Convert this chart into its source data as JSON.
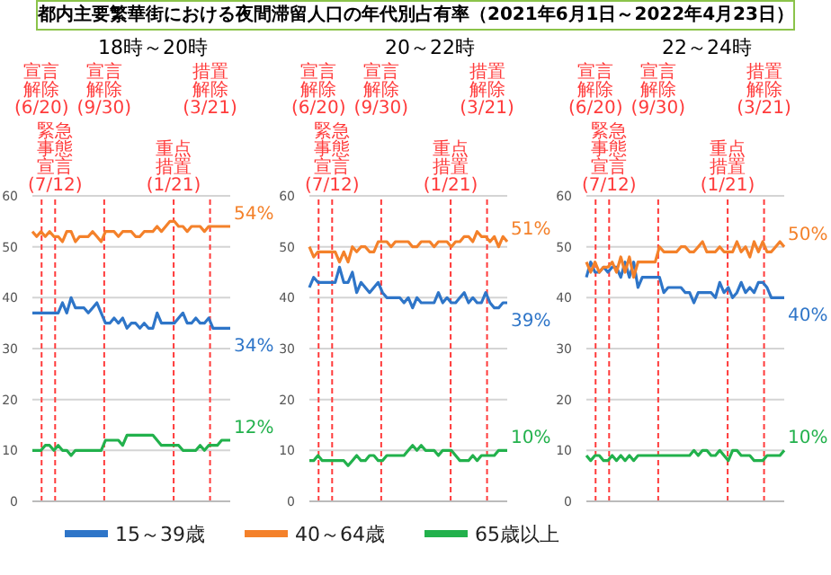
{
  "chart_data": [
    {
      "type": "line",
      "title": "都内主要繁華街における夜間滞留人口の年代別占有率（2021年6月1日～2022年4月23日）",
      "subtitle": "18時～20時",
      "categories": [
        null,
        null,
        null,
        null,
        null,
        null,
        null,
        null,
        null,
        null,
        null,
        null,
        null,
        null,
        null,
        null,
        null,
        null,
        null,
        null,
        null,
        null,
        null,
        null,
        null,
        null,
        null,
        null,
        null,
        null,
        null,
        null,
        null,
        null,
        null,
        null,
        null,
        null,
        null,
        null,
        null,
        null,
        null,
        null,
        null,
        null,
        null
      ],
      "series": [
        {
          "color": "#2e75c8",
          "values": [
            37,
            37,
            37,
            37,
            37,
            37,
            37,
            39,
            37,
            40,
            38,
            38,
            38,
            37,
            38,
            39,
            37,
            35,
            35,
            36,
            35,
            36,
            34,
            35,
            35,
            34,
            35,
            34,
            34,
            37,
            35,
            35,
            35,
            35,
            36,
            37,
            35,
            35,
            36,
            35,
            35,
            36,
            34,
            34,
            34,
            34,
            34
          ]
        },
        {
          "color": "#f4812a",
          "values": [
            53,
            52,
            53,
            52,
            53,
            52,
            52,
            51,
            53,
            53,
            51,
            52,
            52,
            52,
            53,
            52,
            51,
            53,
            53,
            53,
            52,
            53,
            53,
            53,
            52,
            52,
            53,
            53,
            53,
            54,
            53,
            54,
            55,
            55,
            54,
            54,
            53,
            54,
            54,
            54,
            53,
            54,
            54,
            54,
            54,
            54,
            54
          ]
        },
        {
          "color": "#22b14c",
          "values": [
            10,
            10,
            10,
            11,
            11,
            10,
            11,
            10,
            10,
            9,
            10,
            10,
            10,
            10,
            10,
            10,
            10,
            12,
            12,
            12,
            12,
            11,
            13,
            13,
            13,
            13,
            13,
            13,
            13,
            12,
            11,
            11,
            11,
            11,
            11,
            10,
            10,
            10,
            10,
            11,
            10,
            11,
            11,
            11,
            12,
            12,
            12
          ]
        }
      ],
      "ylim": [
        0,
        60
      ],
      "yticks": [
        0,
        10,
        20,
        30,
        40,
        50,
        60
      ],
      "grid": "y",
      "line_style": "solid",
      "ref_lines": [
        {
          "axis": "x",
          "label": "宣言解除(6/20)",
          "color": "#ff3b3b",
          "line_style": "dashed"
        },
        {
          "axis": "x",
          "label": "緊急事態宣言(7/12)",
          "color": "#ff3b3b",
          "line_style": "dashed"
        },
        {
          "axis": "x",
          "label": "宣言解除(9/30)",
          "color": "#ff3b3b",
          "line_style": "dashed"
        },
        {
          "axis": "x",
          "label": "重点措置(1/21)",
          "color": "#ff3b3b",
          "line_style": "dashed"
        },
        {
          "axis": "x",
          "label": "措置解除(3/21)",
          "color": "#ff3b3b",
          "line_style": "dashed"
        }
      ],
      "annotations": [
        "34%",
        "54%",
        "12%"
      ]
    },
    {
      "type": "line",
      "subtitle": "20～22時",
      "categories": [
        null,
        null,
        null,
        null,
        null,
        null,
        null,
        null,
        null,
        null,
        null,
        null,
        null,
        null,
        null,
        null,
        null,
        null,
        null,
        null,
        null,
        null,
        null,
        null,
        null,
        null,
        null,
        null,
        null,
        null,
        null,
        null,
        null,
        null,
        null,
        null,
        null,
        null,
        null,
        null,
        null,
        null,
        null,
        null,
        null,
        null,
        null
      ],
      "series": [
        {
          "name": "15～39歳",
          "color": "#2e75c8",
          "values": [
            42,
            44,
            43,
            43,
            43,
            43,
            43,
            46,
            43,
            43,
            45,
            41,
            43,
            42,
            41,
            42,
            43,
            41,
            40,
            40,
            40,
            40,
            39,
            40,
            38,
            40,
            39,
            39,
            39,
            39,
            41,
            39,
            40,
            39,
            39,
            40,
            41,
            39,
            40,
            39,
            39,
            41,
            39,
            38,
            38,
            39,
            39
          ]
        },
        {
          "name": "40～64歳",
          "color": "#f4812a",
          "values": [
            50,
            48,
            49,
            49,
            49,
            49,
            49,
            47,
            49,
            47,
            50,
            49,
            50,
            50,
            49,
            49,
            51,
            51,
            51,
            50,
            51,
            51,
            51,
            51,
            50,
            50,
            51,
            51,
            51,
            50,
            51,
            51,
            51,
            50,
            51,
            51,
            52,
            52,
            51,
            53,
            52,
            52,
            51,
            52,
            50,
            52,
            51
          ]
        },
        {
          "name": "65歳以上",
          "color": "#22b14c",
          "values": [
            8,
            8,
            9,
            8,
            8,
            8,
            8,
            8,
            8,
            7,
            8,
            9,
            8,
            8,
            9,
            9,
            8,
            8,
            9,
            9,
            9,
            9,
            9,
            10,
            11,
            10,
            11,
            10,
            10,
            10,
            9,
            10,
            10,
            10,
            9,
            8,
            8,
            8,
            9,
            8,
            9,
            9,
            9,
            9,
            10,
            10,
            10
          ]
        }
      ],
      "ylim": [
        0,
        60
      ],
      "yticks": [
        0,
        10,
        20,
        30,
        40,
        50,
        60
      ],
      "grid": "y",
      "line_style": "solid",
      "legend": "bottom",
      "ref_lines": [
        {
          "axis": "x",
          "label": "宣言解除(6/20)",
          "color": "#ff3b3b",
          "line_style": "dashed"
        },
        {
          "axis": "x",
          "label": "緊急事態宣言(7/12)",
          "color": "#ff3b3b",
          "line_style": "dashed"
        },
        {
          "axis": "x",
          "label": "宣言解除(9/30)",
          "color": "#ff3b3b",
          "line_style": "dashed"
        },
        {
          "axis": "x",
          "label": "重点措置(1/21)",
          "color": "#ff3b3b",
          "line_style": "dashed"
        },
        {
          "axis": "x",
          "label": "措置解除(3/21)",
          "color": "#ff3b3b",
          "line_style": "dashed"
        }
      ],
      "annotations": [
        "39%",
        "51%",
        "10%"
      ]
    },
    {
      "type": "line",
      "subtitle": "22～24時",
      "categories": [
        null,
        null,
        null,
        null,
        null,
        null,
        null,
        null,
        null,
        null,
        null,
        null,
        null,
        null,
        null,
        null,
        null,
        null,
        null,
        null,
        null,
        null,
        null,
        null,
        null,
        null,
        null,
        null,
        null,
        null,
        null,
        null,
        null,
        null,
        null,
        null,
        null,
        null,
        null,
        null,
        null,
        null,
        null,
        null,
        null,
        null,
        null
      ],
      "series": [
        {
          "color": "#2e75c8",
          "values": [
            44,
            47,
            45,
            45,
            46,
            45,
            46,
            46,
            44,
            47,
            44,
            47,
            42,
            44,
            44,
            44,
            44,
            44,
            41,
            42,
            42,
            42,
            42,
            41,
            41,
            39,
            41,
            41,
            41,
            41,
            40,
            43,
            41,
            42,
            40,
            41,
            43,
            41,
            42,
            41,
            43,
            43,
            42,
            40,
            40,
            40,
            40
          ]
        },
        {
          "color": "#f4812a",
          "values": [
            47,
            45,
            47,
            45,
            46,
            46,
            47,
            45,
            48,
            45,
            48,
            44,
            47,
            47,
            47,
            47,
            47,
            50,
            49,
            49,
            49,
            49,
            50,
            50,
            49,
            49,
            50,
            51,
            49,
            49,
            49,
            50,
            49,
            49,
            49,
            51,
            49,
            50,
            48,
            51,
            49,
            51,
            49,
            49,
            50,
            51,
            50
          ]
        },
        {
          "color": "#22b14c",
          "values": [
            9,
            8,
            9,
            9,
            8,
            8,
            9,
            8,
            9,
            8,
            9,
            8,
            9,
            9,
            9,
            9,
            9,
            9,
            9,
            9,
            9,
            9,
            9,
            9,
            9,
            10,
            9,
            10,
            10,
            9,
            9,
            10,
            9,
            8,
            10,
            10,
            9,
            9,
            9,
            8,
            8,
            8,
            9,
            9,
            9,
            9,
            10
          ]
        }
      ],
      "ylim": [
        0,
        60
      ],
      "yticks": [
        0,
        10,
        20,
        30,
        40,
        50,
        60
      ],
      "grid": "y",
      "line_style": "solid",
      "ref_lines": [
        {
          "axis": "x",
          "label": "宣言解除(6/20)",
          "color": "#ff3b3b",
          "line_style": "dashed"
        },
        {
          "axis": "x",
          "label": "緊急事態宣言(7/12)",
          "color": "#ff3b3b",
          "line_style": "dashed"
        },
        {
          "axis": "x",
          "label": "宣言解除(9/30)",
          "color": "#ff3b3b",
          "line_style": "dashed"
        },
        {
          "axis": "x",
          "label": "重点措置(1/21)",
          "color": "#ff3b3b",
          "line_style": "dashed"
        },
        {
          "axis": "x",
          "label": "措置解除(3/21)",
          "color": "#ff3b3b",
          "line_style": "dashed"
        }
      ],
      "annotations": [
        "40%",
        "50%",
        "10%"
      ]
    }
  ]
}
